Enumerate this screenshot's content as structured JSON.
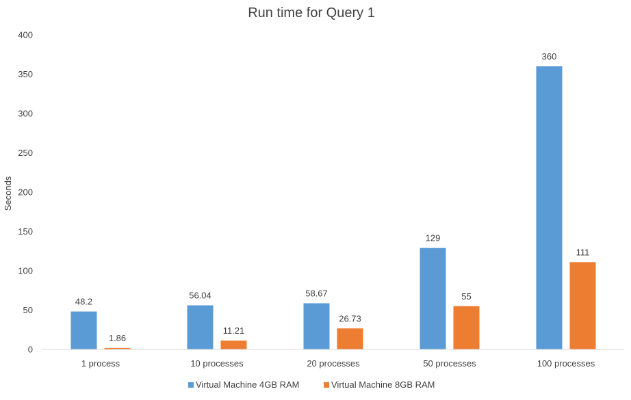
{
  "chart_data": {
    "type": "bar",
    "title": "Run time for Query 1",
    "xlabel": "",
    "ylabel": "Seconds",
    "categories": [
      "1 process",
      "10 processes",
      "20 processes",
      "50 processes",
      "100 processes"
    ],
    "series": [
      {
        "name": "Virtual Machine 4GB RAM",
        "color": "#5B9BD5",
        "values": [
          48.2,
          56.04,
          58.67,
          129,
          360
        ],
        "labels": [
          "48.2",
          "56.04",
          "58.67",
          "129",
          "360"
        ]
      },
      {
        "name": "Virtual Machine 8GB RAM",
        "color": "#ED7D31",
        "values": [
          1.86,
          11.21,
          26.73,
          55,
          111
        ],
        "labels": [
          "1.86",
          "11.21",
          "26.73",
          "55",
          "111"
        ]
      }
    ],
    "ylim": [
      0,
      400
    ],
    "yticks": [
      0,
      50,
      100,
      150,
      200,
      250,
      300,
      350,
      400
    ],
    "grid": false,
    "legend_position": "bottom"
  }
}
